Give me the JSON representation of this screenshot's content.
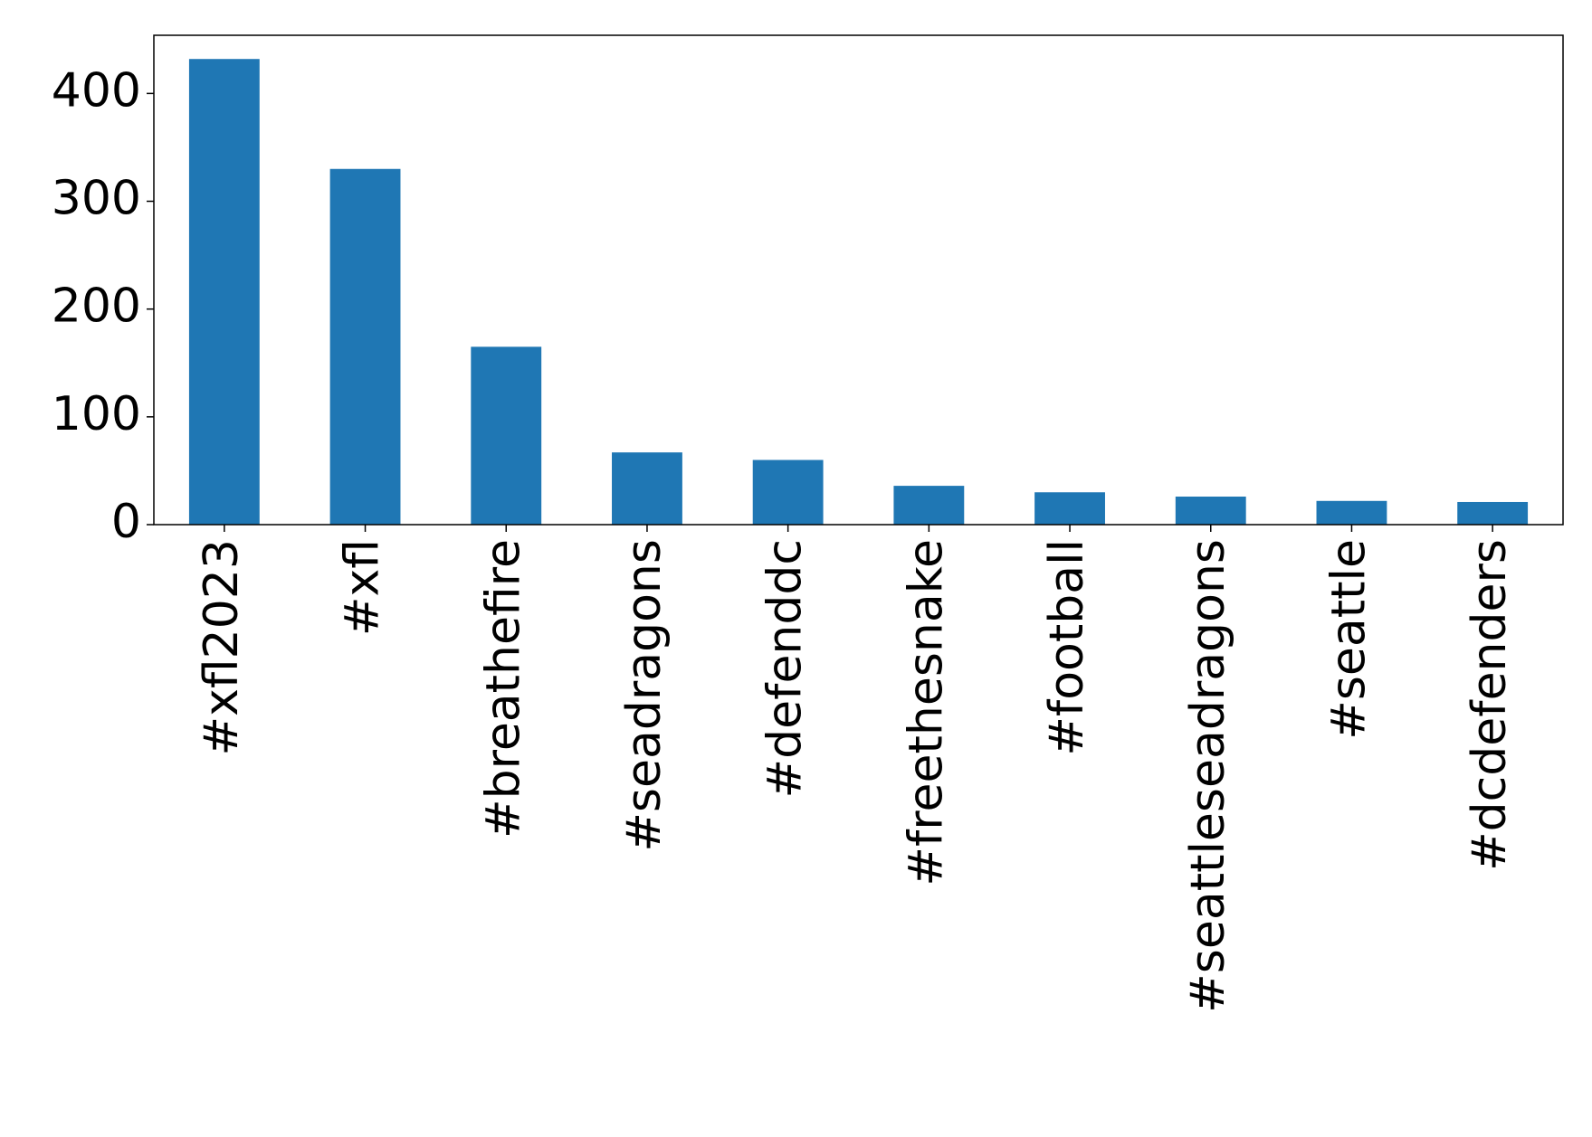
{
  "chart_data": {
    "type": "bar",
    "categories": [
      "#xfl2023",
      "#xfl",
      "#breathefire",
      "#seadragons",
      "#defenddc",
      "#freethesnake",
      "#football",
      "#seattleseadragons",
      "#seattle",
      "#dcdefenders"
    ],
    "values": [
      432,
      330,
      165,
      67,
      60,
      36,
      30,
      26,
      22,
      21
    ],
    "color": "#1f77b4",
    "ylim": [
      0,
      454
    ],
    "yticks": [
      0,
      100,
      200,
      300,
      400
    ],
    "grid": false
  }
}
